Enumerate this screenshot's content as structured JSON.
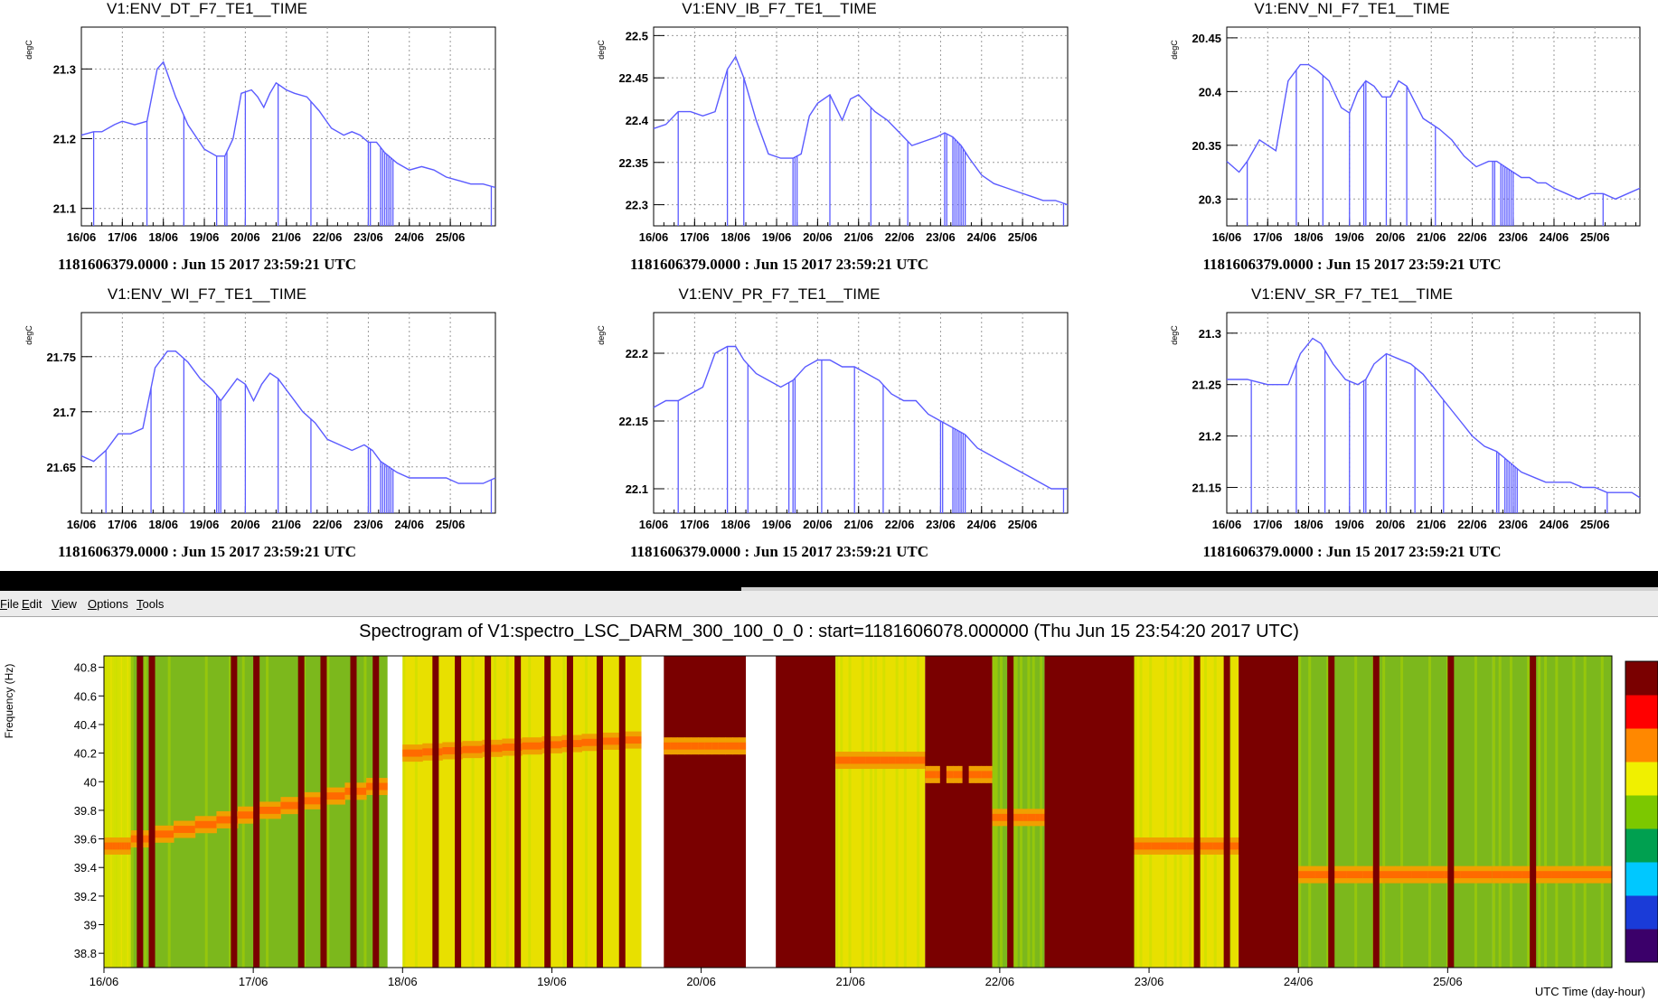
{
  "menu": {
    "items": [
      {
        "first": "F",
        "rest": "ile"
      },
      {
        "first": "E",
        "rest": "dit"
      },
      {
        "first": "V",
        "rest": "iew"
      },
      {
        "first": "O",
        "rest": "ptions"
      },
      {
        "first": "T",
        "rest": "ools"
      }
    ]
  },
  "chart_data": [
    {
      "type": "line",
      "title": "V1:ENV_DT_F7_TE1__TIME",
      "ylabel": "degC",
      "subtitle": "1181606379.0000 : Jun 15 2017 23:59:21 UTC",
      "x_ticks": [
        "16/06",
        "17/06",
        "18/06",
        "19/06",
        "20/06",
        "21/06",
        "22/06",
        "23/06",
        "24/06",
        "25/06"
      ],
      "xlim": [
        0,
        10.1
      ],
      "ylim": [
        21.075,
        21.36
      ],
      "y_ticks": [
        21.1,
        21.2,
        21.3
      ],
      "y_tick_labels": [
        "21.1",
        "21.2",
        "21.3"
      ],
      "grid": true,
      "color": "#5b5bff",
      "x": [
        0,
        0.3,
        0.5,
        0.8,
        1.0,
        1.3,
        1.6,
        1.85,
        2.0,
        2.3,
        2.6,
        3.0,
        3.3,
        3.5,
        3.7,
        3.9,
        4.15,
        4.3,
        4.45,
        4.6,
        4.75,
        5.0,
        5.2,
        5.5,
        5.8,
        6.1,
        6.4,
        6.6,
        6.8,
        7.0,
        7.2,
        7.4,
        7.7,
        8.0,
        8.3,
        8.6,
        8.9,
        9.2,
        9.5,
        9.8,
        10.1
      ],
      "y": [
        21.205,
        21.21,
        21.21,
        21.22,
        21.225,
        21.22,
        21.225,
        21.3,
        21.31,
        21.26,
        21.22,
        21.185,
        21.175,
        21.175,
        21.2,
        21.265,
        21.27,
        21.26,
        21.245,
        21.265,
        21.28,
        21.27,
        21.265,
        21.26,
        21.24,
        21.215,
        21.205,
        21.21,
        21.205,
        21.195,
        21.195,
        21.18,
        21.165,
        21.155,
        21.16,
        21.155,
        21.145,
        21.14,
        21.135,
        21.135,
        21.13
      ],
      "spikes": [
        0.3,
        1.6,
        2.5,
        3.3,
        3.5,
        3.55,
        4.0,
        4.8,
        5.6,
        7.0,
        7.05,
        7.3,
        7.35,
        7.4,
        7.45,
        7.5,
        7.55,
        7.6,
        10.0
      ],
      "spike_floor": 21.075
    },
    {
      "type": "line",
      "title": "V1:ENV_IB_F7_TE1__TIME",
      "ylabel": "degC",
      "subtitle": "1181606379.0000 : Jun 15 2017 23:59:21 UTC",
      "x_ticks": [
        "16/06",
        "17/06",
        "18/06",
        "19/06",
        "20/06",
        "21/06",
        "22/06",
        "23/06",
        "24/06",
        "25/06"
      ],
      "xlim": [
        0,
        10.1
      ],
      "ylim": [
        22.275,
        22.51
      ],
      "y_ticks": [
        22.3,
        22.35,
        22.4,
        22.45,
        22.5
      ],
      "y_tick_labels": [
        "22.3",
        "22.35",
        "22.4",
        "22.45",
        "22.5"
      ],
      "grid": true,
      "color": "#5b5bff",
      "x": [
        0,
        0.3,
        0.6,
        0.9,
        1.2,
        1.5,
        1.8,
        2.0,
        2.2,
        2.5,
        2.8,
        3.1,
        3.4,
        3.6,
        3.8,
        4.0,
        4.3,
        4.6,
        4.8,
        5.0,
        5.2,
        5.4,
        5.7,
        6.0,
        6.3,
        6.6,
        6.9,
        7.1,
        7.3,
        7.5,
        7.7,
        8.0,
        8.3,
        8.6,
        8.9,
        9.2,
        9.5,
        9.8,
        10.1
      ],
      "y": [
        22.39,
        22.395,
        22.41,
        22.41,
        22.405,
        22.41,
        22.46,
        22.475,
        22.45,
        22.4,
        22.36,
        22.355,
        22.355,
        22.36,
        22.405,
        22.42,
        22.43,
        22.4,
        22.425,
        22.43,
        22.42,
        22.41,
        22.4,
        22.385,
        22.37,
        22.375,
        22.38,
        22.385,
        22.38,
        22.37,
        22.355,
        22.335,
        22.325,
        22.32,
        22.315,
        22.31,
        22.305,
        22.305,
        22.3
      ],
      "spikes": [
        0.6,
        1.8,
        2.2,
        3.4,
        3.45,
        3.5,
        4.3,
        5.3,
        6.2,
        7.1,
        7.15,
        7.3,
        7.35,
        7.4,
        7.45,
        7.5,
        7.55,
        7.6,
        10.0
      ],
      "spike_floor": 22.275
    },
    {
      "type": "line",
      "title": "V1:ENV_NI_F7_TE1__TIME",
      "ylabel": "degC",
      "subtitle": "1181606379.0000 : Jun 15 2017 23:59:21 UTC",
      "x_ticks": [
        "16/06",
        "17/06",
        "18/06",
        "19/06",
        "20/06",
        "21/06",
        "22/06",
        "23/06",
        "24/06",
        "25/06"
      ],
      "xlim": [
        0,
        10.1
      ],
      "ylim": [
        20.275,
        20.46
      ],
      "y_ticks": [
        20.3,
        20.35,
        20.4,
        20.45
      ],
      "y_tick_labels": [
        "20.3",
        "20.35",
        "20.4",
        "20.45"
      ],
      "grid": true,
      "color": "#5b5bff",
      "x": [
        0,
        0.3,
        0.5,
        0.8,
        1.0,
        1.2,
        1.5,
        1.8,
        2.0,
        2.2,
        2.5,
        2.8,
        3.0,
        3.2,
        3.4,
        3.6,
        3.8,
        4.0,
        4.2,
        4.4,
        4.6,
        4.8,
        5.0,
        5.2,
        5.5,
        5.8,
        6.1,
        6.4,
        6.6,
        6.8,
        7.0,
        7.2,
        7.4,
        7.6,
        7.8,
        8.0,
        8.3,
        8.6,
        8.9,
        9.2,
        9.5,
        9.8,
        10.1
      ],
      "y": [
        20.335,
        20.325,
        20.335,
        20.355,
        20.35,
        20.345,
        20.41,
        20.425,
        20.425,
        20.42,
        20.41,
        20.385,
        20.38,
        20.4,
        20.41,
        20.405,
        20.395,
        20.395,
        20.41,
        20.405,
        20.39,
        20.375,
        20.37,
        20.365,
        20.355,
        20.34,
        20.33,
        20.335,
        20.335,
        20.33,
        20.325,
        20.32,
        20.32,
        20.315,
        20.315,
        20.31,
        20.305,
        20.3,
        20.305,
        20.305,
        20.3,
        20.305,
        20.31
      ],
      "spikes": [
        0.5,
        1.7,
        2.35,
        3.0,
        3.35,
        3.4,
        3.9,
        4.4,
        5.1,
        6.5,
        6.55,
        6.7,
        6.75,
        6.8,
        6.85,
        6.9,
        6.95,
        7.0,
        9.2
      ],
      "spike_floor": 20.275
    },
    {
      "type": "line",
      "title": "V1:ENV_WI_F7_TE1__TIME",
      "ylabel": "degC",
      "subtitle": "1181606379.0000 : Jun 15 2017 23:59:21 UTC",
      "x_ticks": [
        "16/06",
        "17/06",
        "18/06",
        "19/06",
        "20/06",
        "21/06",
        "22/06",
        "23/06",
        "24/06",
        "25/06"
      ],
      "xlim": [
        0,
        10.1
      ],
      "ylim": [
        21.608,
        21.79
      ],
      "y_ticks": [
        21.65,
        21.7,
        21.75
      ],
      "y_tick_labels": [
        "21.65",
        "21.7",
        "21.75"
      ],
      "grid": true,
      "color": "#5b5bff",
      "x": [
        0,
        0.3,
        0.6,
        0.9,
        1.2,
        1.5,
        1.8,
        2.1,
        2.3,
        2.6,
        2.9,
        3.2,
        3.4,
        3.6,
        3.8,
        4.0,
        4.2,
        4.4,
        4.6,
        4.8,
        5.0,
        5.2,
        5.4,
        5.7,
        6.0,
        6.3,
        6.6,
        6.9,
        7.1,
        7.3,
        7.5,
        7.7,
        8.0,
        8.3,
        8.6,
        8.9,
        9.2,
        9.5,
        9.8,
        10.1
      ],
      "y": [
        21.66,
        21.655,
        21.665,
        21.68,
        21.68,
        21.685,
        21.74,
        21.755,
        21.755,
        21.745,
        21.73,
        21.72,
        21.71,
        21.72,
        21.73,
        21.725,
        21.71,
        21.725,
        21.735,
        21.73,
        21.72,
        21.71,
        21.7,
        21.69,
        21.675,
        21.67,
        21.665,
        21.67,
        21.665,
        21.655,
        21.65,
        21.645,
        21.64,
        21.64,
        21.64,
        21.64,
        21.635,
        21.635,
        21.635,
        21.64
      ],
      "spikes": [
        0.6,
        1.7,
        2.5,
        3.3,
        3.35,
        3.4,
        4.0,
        4.8,
        5.6,
        7.0,
        7.05,
        7.3,
        7.35,
        7.4,
        7.45,
        7.5,
        7.55,
        7.6,
        10.0
      ],
      "spike_floor": 21.608
    },
    {
      "type": "line",
      "title": "V1:ENV_PR_F7_TE1__TIME",
      "ylabel": "degC",
      "subtitle": "1181606379.0000 : Jun 15 2017 23:59:21 UTC",
      "x_ticks": [
        "16/06",
        "17/06",
        "18/06",
        "19/06",
        "20/06",
        "21/06",
        "22/06",
        "23/06",
        "24/06",
        "25/06"
      ],
      "xlim": [
        0,
        10.1
      ],
      "ylim": [
        22.082,
        22.23
      ],
      "y_ticks": [
        22.1,
        22.15,
        22.2
      ],
      "y_tick_labels": [
        "22.1",
        "22.15",
        "22.2"
      ],
      "grid": true,
      "color": "#5b5bff",
      "x": [
        0,
        0.3,
        0.6,
        0.9,
        1.2,
        1.5,
        1.8,
        2.0,
        2.2,
        2.5,
        2.8,
        3.1,
        3.4,
        3.7,
        4.0,
        4.3,
        4.6,
        4.9,
        5.2,
        5.5,
        5.8,
        6.1,
        6.4,
        6.7,
        7.0,
        7.3,
        7.6,
        7.9,
        8.2,
        8.5,
        8.8,
        9.1,
        9.4,
        9.7,
        10.1
      ],
      "y": [
        22.16,
        22.165,
        22.165,
        22.17,
        22.175,
        22.2,
        22.205,
        22.205,
        22.195,
        22.185,
        22.18,
        22.175,
        22.18,
        22.19,
        22.195,
        22.195,
        22.19,
        22.19,
        22.185,
        22.18,
        22.17,
        22.165,
        22.165,
        22.155,
        22.15,
        22.145,
        22.14,
        22.13,
        22.125,
        22.12,
        22.115,
        22.11,
        22.105,
        22.1,
        22.1
      ],
      "spikes": [
        0.6,
        1.8,
        2.3,
        3.3,
        3.4,
        3.45,
        4.1,
        4.9,
        5.6,
        7.0,
        7.05,
        7.3,
        7.35,
        7.4,
        7.45,
        7.5,
        7.55,
        7.6,
        10.0
      ],
      "spike_floor": 22.082
    },
    {
      "type": "line",
      "title": "V1:ENV_SR_F7_TE1__TIME",
      "ylabel": "degC",
      "subtitle": "1181606379.0000 : Jun 15 2017 23:59:21 UTC",
      "x_ticks": [
        "16/06",
        "17/06",
        "18/06",
        "19/06",
        "20/06",
        "21/06",
        "22/06",
        "23/06",
        "24/06",
        "25/06"
      ],
      "xlim": [
        0,
        10.1
      ],
      "ylim": [
        21.125,
        21.32
      ],
      "y_ticks": [
        21.15,
        21.2,
        21.25,
        21.3
      ],
      "y_tick_labels": [
        "21.15",
        "21.2",
        "21.25",
        "21.3"
      ],
      "grid": true,
      "color": "#5b5bff",
      "x": [
        0,
        0.5,
        1.0,
        1.5,
        1.8,
        2.1,
        2.3,
        2.6,
        2.9,
        3.2,
        3.4,
        3.6,
        3.9,
        4.2,
        4.5,
        4.8,
        5.1,
        5.4,
        5.7,
        6.0,
        6.3,
        6.6,
        6.9,
        7.2,
        7.5,
        7.8,
        8.1,
        8.4,
        8.7,
        9.0,
        9.3,
        9.6,
        9.9,
        10.1
      ],
      "y": [
        21.255,
        21.255,
        21.25,
        21.25,
        21.28,
        21.295,
        21.29,
        21.27,
        21.255,
        21.25,
        21.255,
        21.27,
        21.28,
        21.275,
        21.27,
        21.26,
        21.245,
        21.23,
        21.215,
        21.2,
        21.19,
        21.185,
        21.175,
        21.165,
        21.16,
        21.155,
        21.155,
        21.155,
        21.15,
        21.15,
        21.145,
        21.145,
        21.145,
        21.14
      ],
      "spikes": [
        0.6,
        1.7,
        2.4,
        3.0,
        3.35,
        3.4,
        3.9,
        4.6,
        5.3,
        6.6,
        6.65,
        6.8,
        6.85,
        6.9,
        6.95,
        7.0,
        7.05,
        7.1,
        9.3
      ],
      "spike_floor": 21.125
    },
    {
      "type": "heatmap",
      "title": "Spectrogram of V1:spectro_LSC_DARM_300_100_0_0 : start=1181606078.000000 (Thu Jun 15 23:54:20 2017 UTC)",
      "ylabel": "Frequency (Hz)",
      "xlabel": "UTC Time (day-hour)",
      "x_ticks": [
        "16/06",
        "17/06",
        "18/06",
        "19/06",
        "20/06",
        "21/06",
        "22/06",
        "23/06",
        "24/06",
        "25/06"
      ],
      "xlim": [
        0,
        10.1
      ],
      "ylim": [
        38.7,
        40.88
      ],
      "y_ticks": [
        38.8,
        39,
        39.2,
        39.4,
        39.6,
        39.8,
        40,
        40.2,
        40.4,
        40.6,
        40.8
      ],
      "y_tick_labels": [
        "38.8",
        "39",
        "39.2",
        "39.4",
        "39.6",
        "39.8",
        "40",
        "40.2",
        "40.4",
        "40.6",
        "40.8"
      ],
      "colormap": [
        "#3b006a",
        "#1a3bd8",
        "#00c8ff",
        "#00a050",
        "#7cc800",
        "#f0f000",
        "#ff8800",
        "#ff0000",
        "#7a0000"
      ],
      "blocks": [
        {
          "start": 0.0,
          "end": 0.18,
          "kind": "yellow",
          "line": 39.55
        },
        {
          "start": 0.18,
          "end": 1.9,
          "kind": "green",
          "line": 39.6,
          "line_end": 40.0
        },
        {
          "start": 1.9,
          "end": 2.0,
          "kind": "white"
        },
        {
          "start": 2.0,
          "end": 3.6,
          "kind": "yellow",
          "line": 40.2,
          "line_end": 40.3
        },
        {
          "start": 3.6,
          "end": 3.75,
          "kind": "white"
        },
        {
          "start": 3.75,
          "end": 4.3,
          "kind": "maroon",
          "line": 40.25
        },
        {
          "start": 4.3,
          "end": 4.5,
          "kind": "white"
        },
        {
          "start": 4.5,
          "end": 4.9,
          "kind": "maroon"
        },
        {
          "start": 4.9,
          "end": 5.5,
          "kind": "yellow",
          "line": 40.15
        },
        {
          "start": 5.5,
          "end": 5.95,
          "kind": "maroon",
          "line": 40.05
        },
        {
          "start": 5.95,
          "end": 6.3,
          "kind": "green",
          "line": 39.75
        },
        {
          "start": 6.3,
          "end": 6.9,
          "kind": "maroon"
        },
        {
          "start": 6.9,
          "end": 7.6,
          "kind": "yellow",
          "line": 39.55
        },
        {
          "start": 7.6,
          "end": 8.0,
          "kind": "maroon"
        },
        {
          "start": 8.0,
          "end": 9.3,
          "kind": "green",
          "line": 39.35
        },
        {
          "start": 9.3,
          "end": 10.1,
          "kind": "green",
          "line": 39.35
        }
      ],
      "dark_stripes": [
        0.22,
        0.3,
        0.85,
        1.0,
        1.3,
        1.45,
        1.65,
        1.8,
        2.2,
        2.35,
        2.55,
        2.75,
        2.95,
        3.1,
        3.3,
        3.45,
        4.6,
        4.75,
        5.6,
        5.75,
        6.05,
        6.4,
        6.6,
        6.75,
        7.3,
        7.5,
        7.7,
        7.85,
        8.2,
        8.5,
        9.0,
        9.55
      ]
    }
  ]
}
